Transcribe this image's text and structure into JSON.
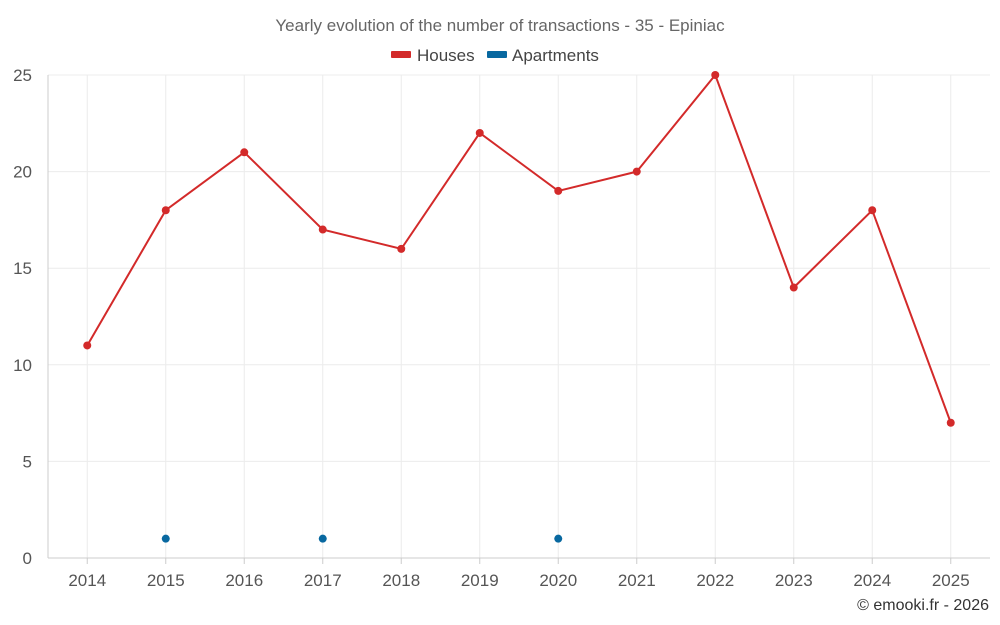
{
  "chart_data": {
    "type": "line",
    "title": "Yearly evolution of the number of transactions - 35 - Epiniac",
    "categories": [
      "2014",
      "2015",
      "2016",
      "2017",
      "2018",
      "2019",
      "2020",
      "2021",
      "2022",
      "2023",
      "2024",
      "2025"
    ],
    "series": [
      {
        "name": "Houses",
        "color": "#d32a2a",
        "values": [
          11,
          18,
          21,
          17,
          16,
          22,
          19,
          20,
          25,
          14,
          18,
          7
        ]
      },
      {
        "name": "Apartments",
        "color": "#0868a0",
        "values": [
          null,
          1,
          null,
          1,
          null,
          null,
          1,
          null,
          null,
          null,
          null,
          null
        ]
      }
    ],
    "ylim": [
      0,
      25
    ],
    "yticks": [
      0,
      5,
      10,
      15,
      20,
      25
    ],
    "xlabel": "",
    "ylabel": "",
    "grid": true,
    "legend_position": "top-center"
  },
  "credit": "© emooki.fr - 2026"
}
